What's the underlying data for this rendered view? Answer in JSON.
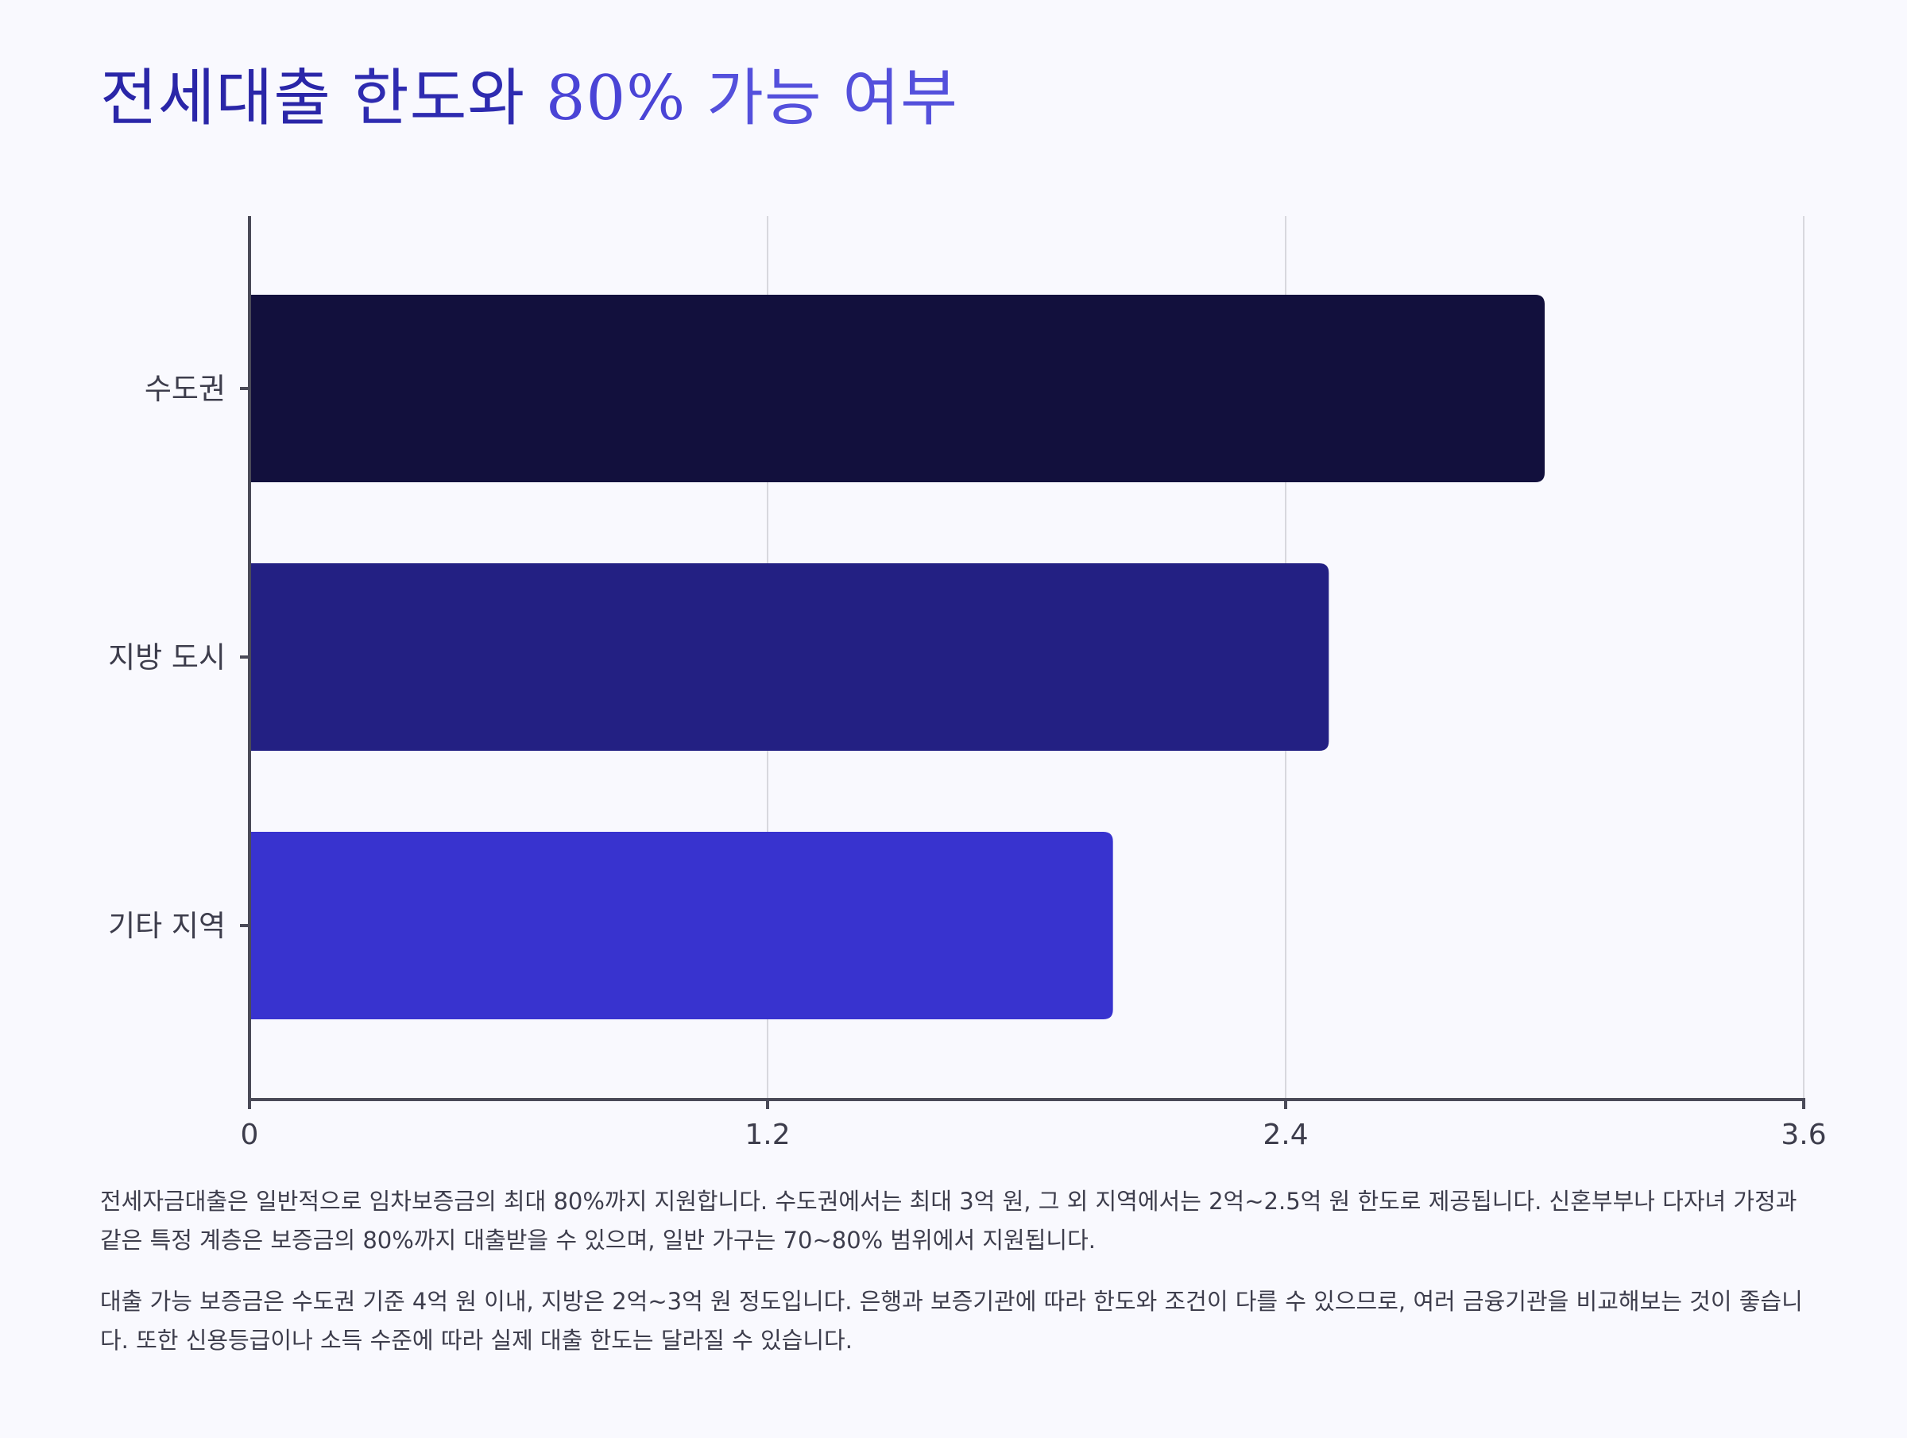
{
  "title": {
    "segments": [
      "전세대출 ",
      "한도와 ",
      "80% ",
      "가능 여부"
    ]
  },
  "chart_data": {
    "type": "bar",
    "orientation": "horizontal",
    "title": "전세대출 한도와 80% 가능 여부",
    "xlabel": "",
    "ylabel": "",
    "categories": [
      "수도권",
      "지방 도시",
      "기타 지역"
    ],
    "values": [
      3.0,
      2.5,
      2.0
    ],
    "xlim": [
      0,
      3.6
    ],
    "xticks": [
      "0",
      "1.2",
      "2.4",
      "3.6"
    ],
    "xtick_values": [
      0,
      1.2,
      2.4,
      3.6
    ],
    "grid": "vertical",
    "legend": "none",
    "bar_colors": [
      "#12103d",
      "#232083",
      "#3833cf"
    ],
    "axis_color": "#4a4a58",
    "grid_color": "#d8d8de",
    "label_color": "#3d3d4c"
  },
  "notes": {
    "paragraphs": [
      "전세자금대출은 일반적으로 임차보증금의 최대 80%까지 지원합니다. 수도권에서는 최대 3억 원, 그 외 지역에서는 2억~2.5억 원 한도로 제공됩니다. 신혼부부나 다자녀 가정과 같은 특정 계층은 보증금의 80%까지 대출받을 수 있으며, 일반 가구는 70~80% 범위에서 지원됩니다.",
      "대출 가능 보증금은 수도권 기준 4억 원 이내, 지방은 2억~3억 원 정도입니다. 은행과 보증기관에 따라 한도와 조건이 다를 수 있으므로, 여러 금융기관을 비교해보는 것이 좋습니다. 또한 신용등급이나 소득 수준에 따라 실제 대출 한도는 달라질 수 있습니다."
    ]
  }
}
